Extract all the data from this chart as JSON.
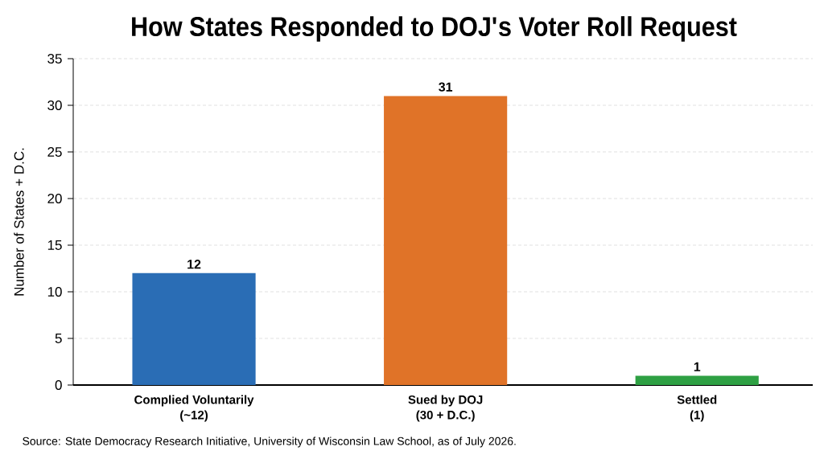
{
  "chart_data": {
    "type": "bar",
    "title": "How States Responded to DOJ's Voter Roll Request",
    "ylabel": "Number of States + D.C.",
    "categories": [
      "Complied Voluntarily\n(~12)",
      "Sued by DOJ\n(30 + D.C.)",
      "Settled\n(1)"
    ],
    "values": [
      12,
      31,
      1
    ],
    "colors": [
      "#2a6db5",
      "#e07328",
      "#2ea043"
    ],
    "ylim": [
      0,
      35
    ],
    "yticks": [
      0,
      5,
      10,
      15,
      20,
      25,
      30,
      35
    ],
    "grid": "y",
    "data_labels": true,
    "annotations": [
      "Source: State Democracy Research Initiative, University of Wisconsin Law School, as of July 2026."
    ]
  }
}
